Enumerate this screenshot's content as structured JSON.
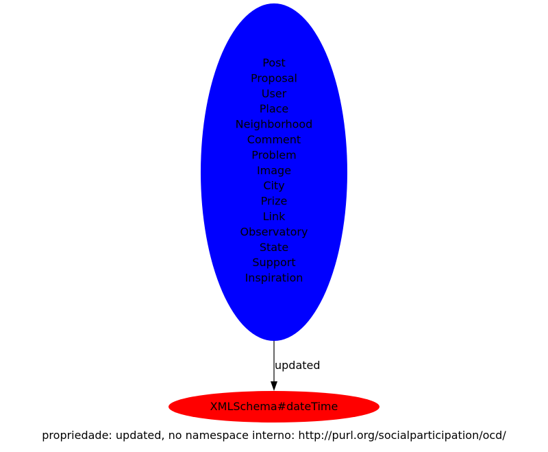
{
  "graph": {
    "caption": "propriedade: updated, no namespace interno: http://purl.org/socialparticipation/ocd/",
    "source_node": {
      "labels": [
        "Post",
        "Proposal",
        "User",
        "Place",
        "Neighborhood",
        "Comment",
        "Problem",
        "Image",
        "City",
        "Prize",
        "Link",
        "Observatory",
        "State",
        "Support",
        "Inspiration"
      ],
      "fill_color": "#0000ff"
    },
    "target_node": {
      "label": "XMLSchema#dateTime",
      "fill_color": "#ff0000"
    },
    "edge": {
      "label": "updated",
      "color": "#000000"
    }
  }
}
